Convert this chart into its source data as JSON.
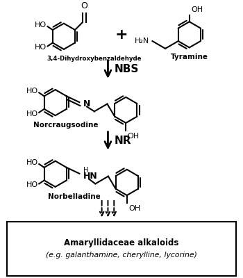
{
  "figsize": [
    3.5,
    4.0
  ],
  "dpi": 100,
  "bg_color": "#ffffff",
  "arrow_nbs_label": "NBS",
  "arrow_nr_label": "NR",
  "compound1_name": "3,4-Dihydroxybenzaldehyde",
  "compound2_name": "Tyramine",
  "compound3_name": "Norcraugsodine",
  "compound4_name": "Norbelladine",
  "box_line1": "Amaryllidaceae alkaloids",
  "box_line2": "(e.g. galanthamine, cherylline, lycorine)",
  "lw": 1.5,
  "ring_r": 0.38,
  "xmax": 7.0,
  "ymax": 8.0
}
